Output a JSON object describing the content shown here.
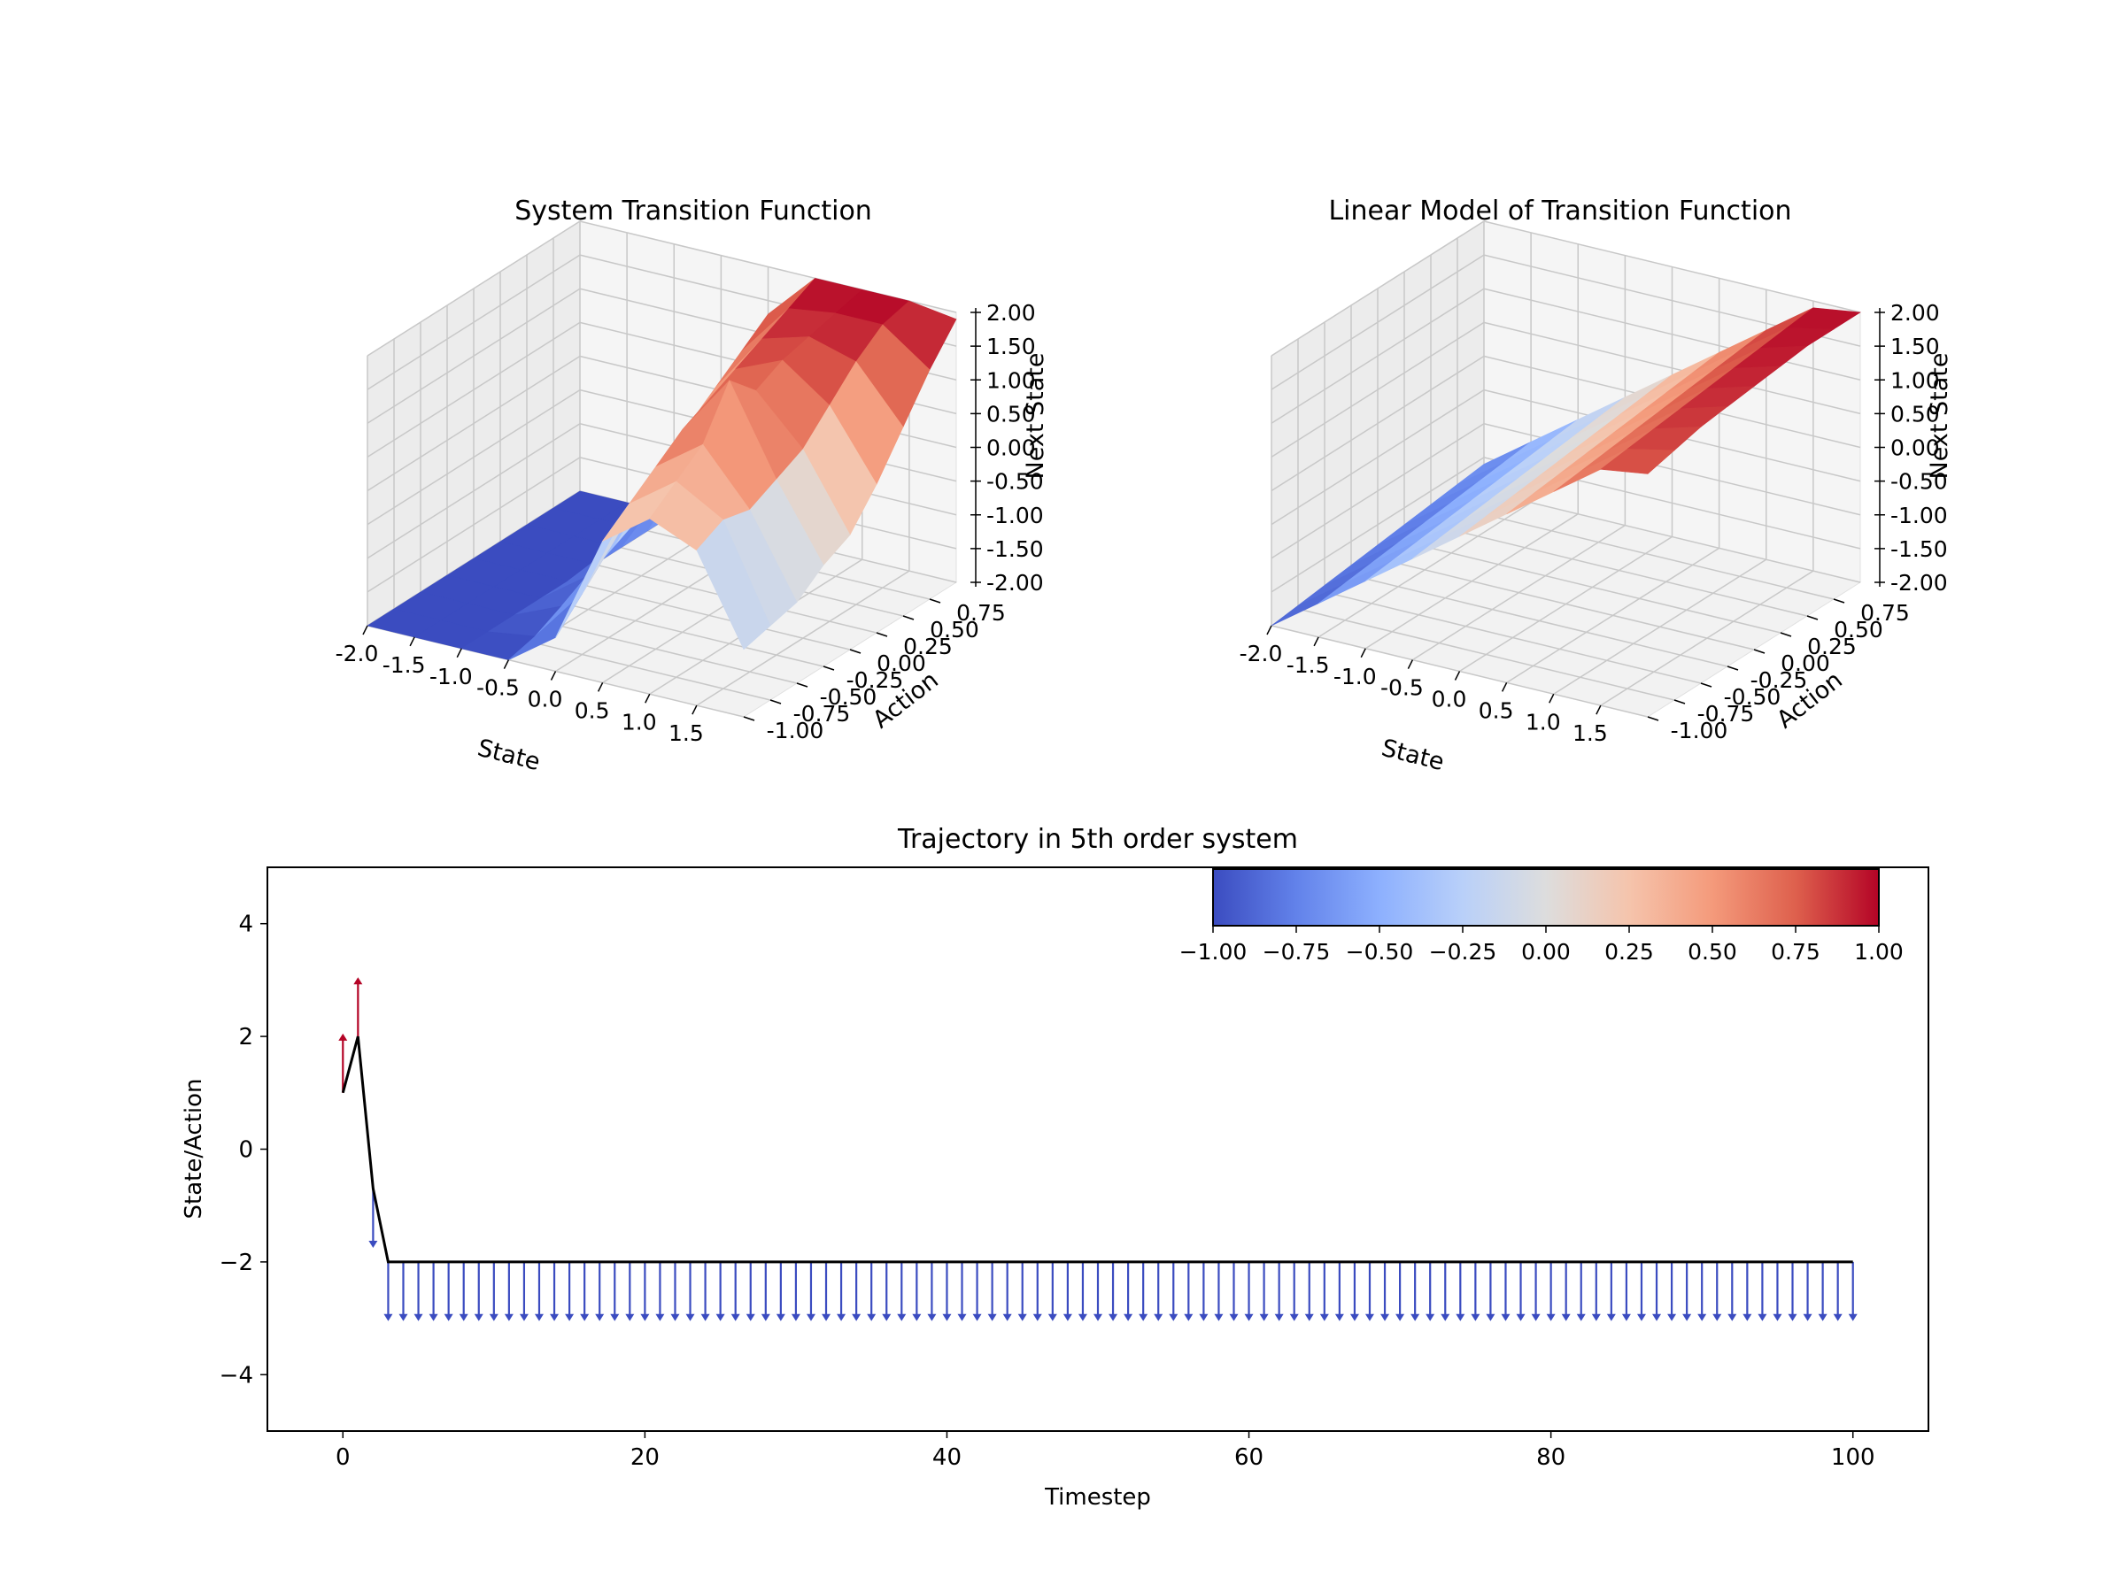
{
  "charts": {
    "surface_left": {
      "title": "System Transition Function",
      "xlabel": "State",
      "ylabel": "Action",
      "zlabel": "Next State"
    },
    "surface_right": {
      "title": "Linear Model of Transition Function",
      "xlabel": "State",
      "ylabel": "Action",
      "zlabel": "Next State"
    },
    "trajectory": {
      "title": "Trajectory in 5th order system",
      "xlabel": "Timestep",
      "ylabel": "State/Action"
    }
  },
  "colors": {
    "cmap_low": "#3b4cc0",
    "cmap_mid": "#dddddd",
    "cmap_high": "#b40426",
    "line": "#000000",
    "pane": "#f2f2f2",
    "grid": "#c8c8c8"
  },
  "chart_data": [
    {
      "type": "surface",
      "title": "System Transition Function",
      "xlabel": "State",
      "ylabel": "Action",
      "zlabel": "Next State",
      "x_ticks": [
        "-2.0",
        "-1.5",
        "-1.0",
        "-0.5",
        "0.0",
        "0.5",
        "1.0",
        "1.5"
      ],
      "y_ticks": [
        "-1.00",
        "-0.75",
        "-0.50",
        "-0.25",
        "0.00",
        "0.25",
        "0.50",
        "0.75"
      ],
      "z_ticks": [
        "-2.00",
        "-1.50",
        "-1.00",
        "-0.50",
        "0.00",
        "0.50",
        "1.00",
        "1.50",
        "2.00"
      ],
      "x_range": [
        -2,
        2
      ],
      "y_range": [
        -1,
        1
      ],
      "z_range": [
        -2,
        2
      ],
      "x": [
        -2.0,
        -1.5,
        -1.0,
        -0.5,
        0.0,
        0.5,
        1.0,
        1.5,
        2.0
      ],
      "y": [
        -1.0,
        -0.75,
        -0.5,
        -0.25,
        0.0,
        0.25,
        0.5,
        0.75,
        1.0
      ],
      "z": [
        [
          -2.0,
          -2.0,
          -2.0,
          -2.0,
          -2.0,
          -2.0,
          -2.0,
          -2.0,
          -2.0
        ],
        [
          -2.0,
          -2.0,
          -2.0,
          -2.0,
          -2.0,
          -2.0,
          -2.0,
          -2.0,
          -2.0
        ],
        [
          -2.0,
          -2.0,
          -2.0,
          -2.0,
          -2.0,
          -2.0,
          -2.0,
          -2.0,
          -2.0
        ],
        [
          -2.0,
          -1.9,
          -1.7,
          -1.5,
          -1.3,
          -1.1,
          -0.9,
          -0.7,
          -0.5
        ],
        [
          -1.5,
          -1.1,
          -0.7,
          -0.3,
          0.1,
          0.4,
          0.7,
          1.0,
          1.3
        ],
        [
          0.1,
          0.4,
          0.7,
          1.0,
          1.2,
          1.4,
          1.6,
          1.8,
          2.0
        ],
        [
          0.6,
          0.9,
          1.2,
          1.9,
          1.5,
          1.7,
          1.8,
          1.9,
          2.0
        ],
        [
          0.3,
          0.5,
          0.4,
          0.6,
          0.8,
          1.2,
          1.6,
          1.9,
          2.0
        ],
        [
          -1.0,
          -0.9,
          -0.8,
          -0.5,
          -0.3,
          0.2,
          0.8,
          1.4,
          1.9
        ]
      ]
    },
    {
      "type": "surface",
      "title": "Linear Model of Transition Function",
      "xlabel": "State",
      "ylabel": "Action",
      "zlabel": "Next State",
      "x_ticks": [
        "-2.0",
        "-1.5",
        "-1.0",
        "-0.5",
        "0.0",
        "0.5",
        "1.0",
        "1.5"
      ],
      "y_ticks": [
        "-1.00",
        "-0.75",
        "-0.50",
        "-0.25",
        "0.00",
        "0.25",
        "0.50",
        "0.75"
      ],
      "z_ticks": [
        "-2.00",
        "-1.50",
        "-1.00",
        "-0.50",
        "0.00",
        "0.50",
        "1.00",
        "1.50",
        "2.00"
      ],
      "x_range": [
        -2,
        2
      ],
      "y_range": [
        -1,
        1
      ],
      "z_range": [
        -2,
        2
      ],
      "x": [
        -2.0,
        -1.5,
        -1.0,
        -0.5,
        0.0,
        0.5,
        1.0,
        1.5,
        2.0
      ],
      "y": [
        -1.0,
        -0.75,
        -0.5,
        -0.25,
        0.0,
        0.25,
        0.5,
        0.75,
        1.0
      ],
      "z": [
        [
          -2.0,
          -1.95,
          -1.9,
          -1.85,
          -1.8,
          -1.75,
          -1.7,
          -1.65,
          -1.6
        ],
        [
          -1.5,
          -1.45,
          -1.4,
          -1.35,
          -1.3,
          -1.25,
          -1.2,
          -1.15,
          -1.1
        ],
        [
          -1.0,
          -0.95,
          -0.9,
          -0.85,
          -0.8,
          -0.75,
          -0.7,
          -0.65,
          -0.6
        ],
        [
          -0.5,
          -0.45,
          -0.4,
          -0.35,
          -0.3,
          -0.25,
          -0.2,
          -0.15,
          -0.1
        ],
        [
          0.0,
          0.05,
          0.1,
          0.15,
          0.2,
          0.25,
          0.3,
          0.35,
          0.4
        ],
        [
          0.5,
          0.55,
          0.6,
          0.65,
          0.7,
          0.75,
          0.8,
          0.85,
          0.9
        ],
        [
          1.0,
          1.05,
          1.1,
          1.15,
          1.2,
          1.25,
          1.3,
          1.35,
          1.4
        ],
        [
          1.5,
          1.55,
          1.6,
          1.65,
          1.7,
          1.75,
          1.8,
          1.85,
          1.9
        ],
        [
          1.6,
          1.7,
          1.8,
          1.85,
          1.9,
          1.95,
          2.0,
          2.0,
          2.0
        ]
      ]
    },
    {
      "type": "line",
      "title": "Trajectory in 5th order system",
      "xlabel": "Timestep",
      "ylabel": "State/Action",
      "xlim": [
        -5,
        105
      ],
      "ylim": [
        -5,
        5
      ],
      "x_ticks": [
        0,
        20,
        40,
        60,
        80,
        100
      ],
      "y_ticks": [
        -4,
        -2,
        0,
        2,
        4
      ],
      "y_tick_labels": [
        "−4",
        "−2",
        "0",
        "2",
        "4"
      ],
      "x_tick_labels": [
        "0",
        "20",
        "40",
        "60",
        "80",
        "100"
      ],
      "state_start": [
        [
          0,
          1.0
        ],
        [
          1,
          2.0
        ],
        [
          2,
          -0.7
        ]
      ],
      "state_steady_value": -2.0,
      "state_steady_from": 3,
      "state_steady_to": 100,
      "actions_start": [
        [
          0,
          1.0,
          1.0
        ],
        [
          1,
          2.0,
          1.0
        ],
        [
          2,
          -0.7,
          -1.0
        ]
      ],
      "actions_steady_action": -1.0,
      "colorbar": {
        "range": [
          -1.0,
          1.0
        ],
        "ticks": [
          "−1.00",
          "−0.75",
          "−0.50",
          "−0.25",
          "0.00",
          "0.25",
          "0.50",
          "0.75",
          "1.00"
        ],
        "placement": "top-right"
      }
    }
  ]
}
